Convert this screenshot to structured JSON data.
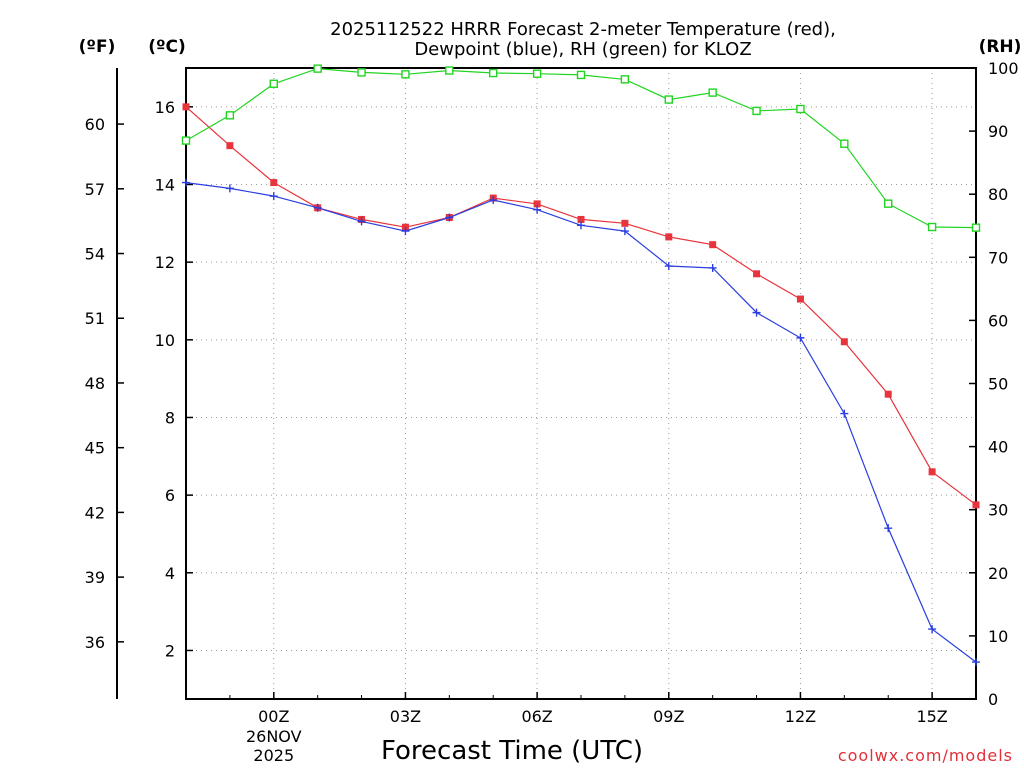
{
  "chart_data": {
    "type": "line",
    "title": [
      "2025112522 HRRR Forecast 2-meter Temperature (red),",
      "Dewpoint (blue), RH (green) for KLOZ"
    ],
    "xlabel": "Forecast Time (UTC)",
    "credit": "coolwx.com/models",
    "units": {
      "fahrenheit": "(ºF)",
      "celsius": "(ºC)",
      "rh": "(RH)"
    },
    "x_hours": [
      -2,
      -1,
      0,
      1,
      2,
      3,
      4,
      5,
      6,
      7,
      8,
      9,
      10,
      11,
      12,
      13,
      14,
      15,
      16
    ],
    "xlim": [
      -2,
      16
    ],
    "x_ticks": [
      {
        "hour": 0,
        "label": "00Z",
        "sub": [
          "26NOV",
          "2025"
        ]
      },
      {
        "hour": 3,
        "label": "03Z"
      },
      {
        "hour": 6,
        "label": "06Z"
      },
      {
        "hour": 9,
        "label": "09Z"
      },
      {
        "hour": 12,
        "label": "12Z"
      },
      {
        "hour": 15,
        "label": "15Z"
      }
    ],
    "celsius_axis": {
      "ylim": [
        0.75,
        17.0
      ],
      "ticks": [
        2,
        4,
        6,
        8,
        10,
        12,
        14,
        16
      ]
    },
    "fahrenheit_axis": {
      "ticks": [
        36,
        39,
        42,
        45,
        48,
        51,
        54,
        57,
        60
      ]
    },
    "rh_axis": {
      "ylim": [
        0,
        100
      ],
      "ticks": [
        0,
        10,
        20,
        30,
        40,
        50,
        60,
        70,
        80,
        90,
        100
      ]
    },
    "series": [
      {
        "name": "Temperature",
        "color": "#e8343c",
        "axis": "celsius",
        "marker": "square-filled",
        "values": [
          16.0,
          15.0,
          14.05,
          13.4,
          13.1,
          12.9,
          13.15,
          13.65,
          13.5,
          13.1,
          13.0,
          12.65,
          12.45,
          11.7,
          11.05,
          9.95,
          8.6,
          6.6,
          5.75
        ]
      },
      {
        "name": "Dewpoint",
        "color": "#2b3fe0",
        "axis": "celsius",
        "marker": "plus",
        "values": [
          14.05,
          13.9,
          13.7,
          13.4,
          13.05,
          12.8,
          13.15,
          13.6,
          13.35,
          12.95,
          12.8,
          11.9,
          11.85,
          10.7,
          10.05,
          8.1,
          5.15,
          2.55,
          1.7
        ]
      },
      {
        "name": "RH",
        "color": "#22d422",
        "axis": "rh",
        "marker": "square-open",
        "values": [
          88.5,
          92.5,
          97.5,
          99.9,
          99.3,
          99.0,
          99.6,
          99.2,
          99.1,
          98.9,
          98.2,
          95.0,
          96.1,
          93.2,
          93.5,
          88.0,
          78.5,
          74.8,
          74.7
        ]
      }
    ]
  }
}
